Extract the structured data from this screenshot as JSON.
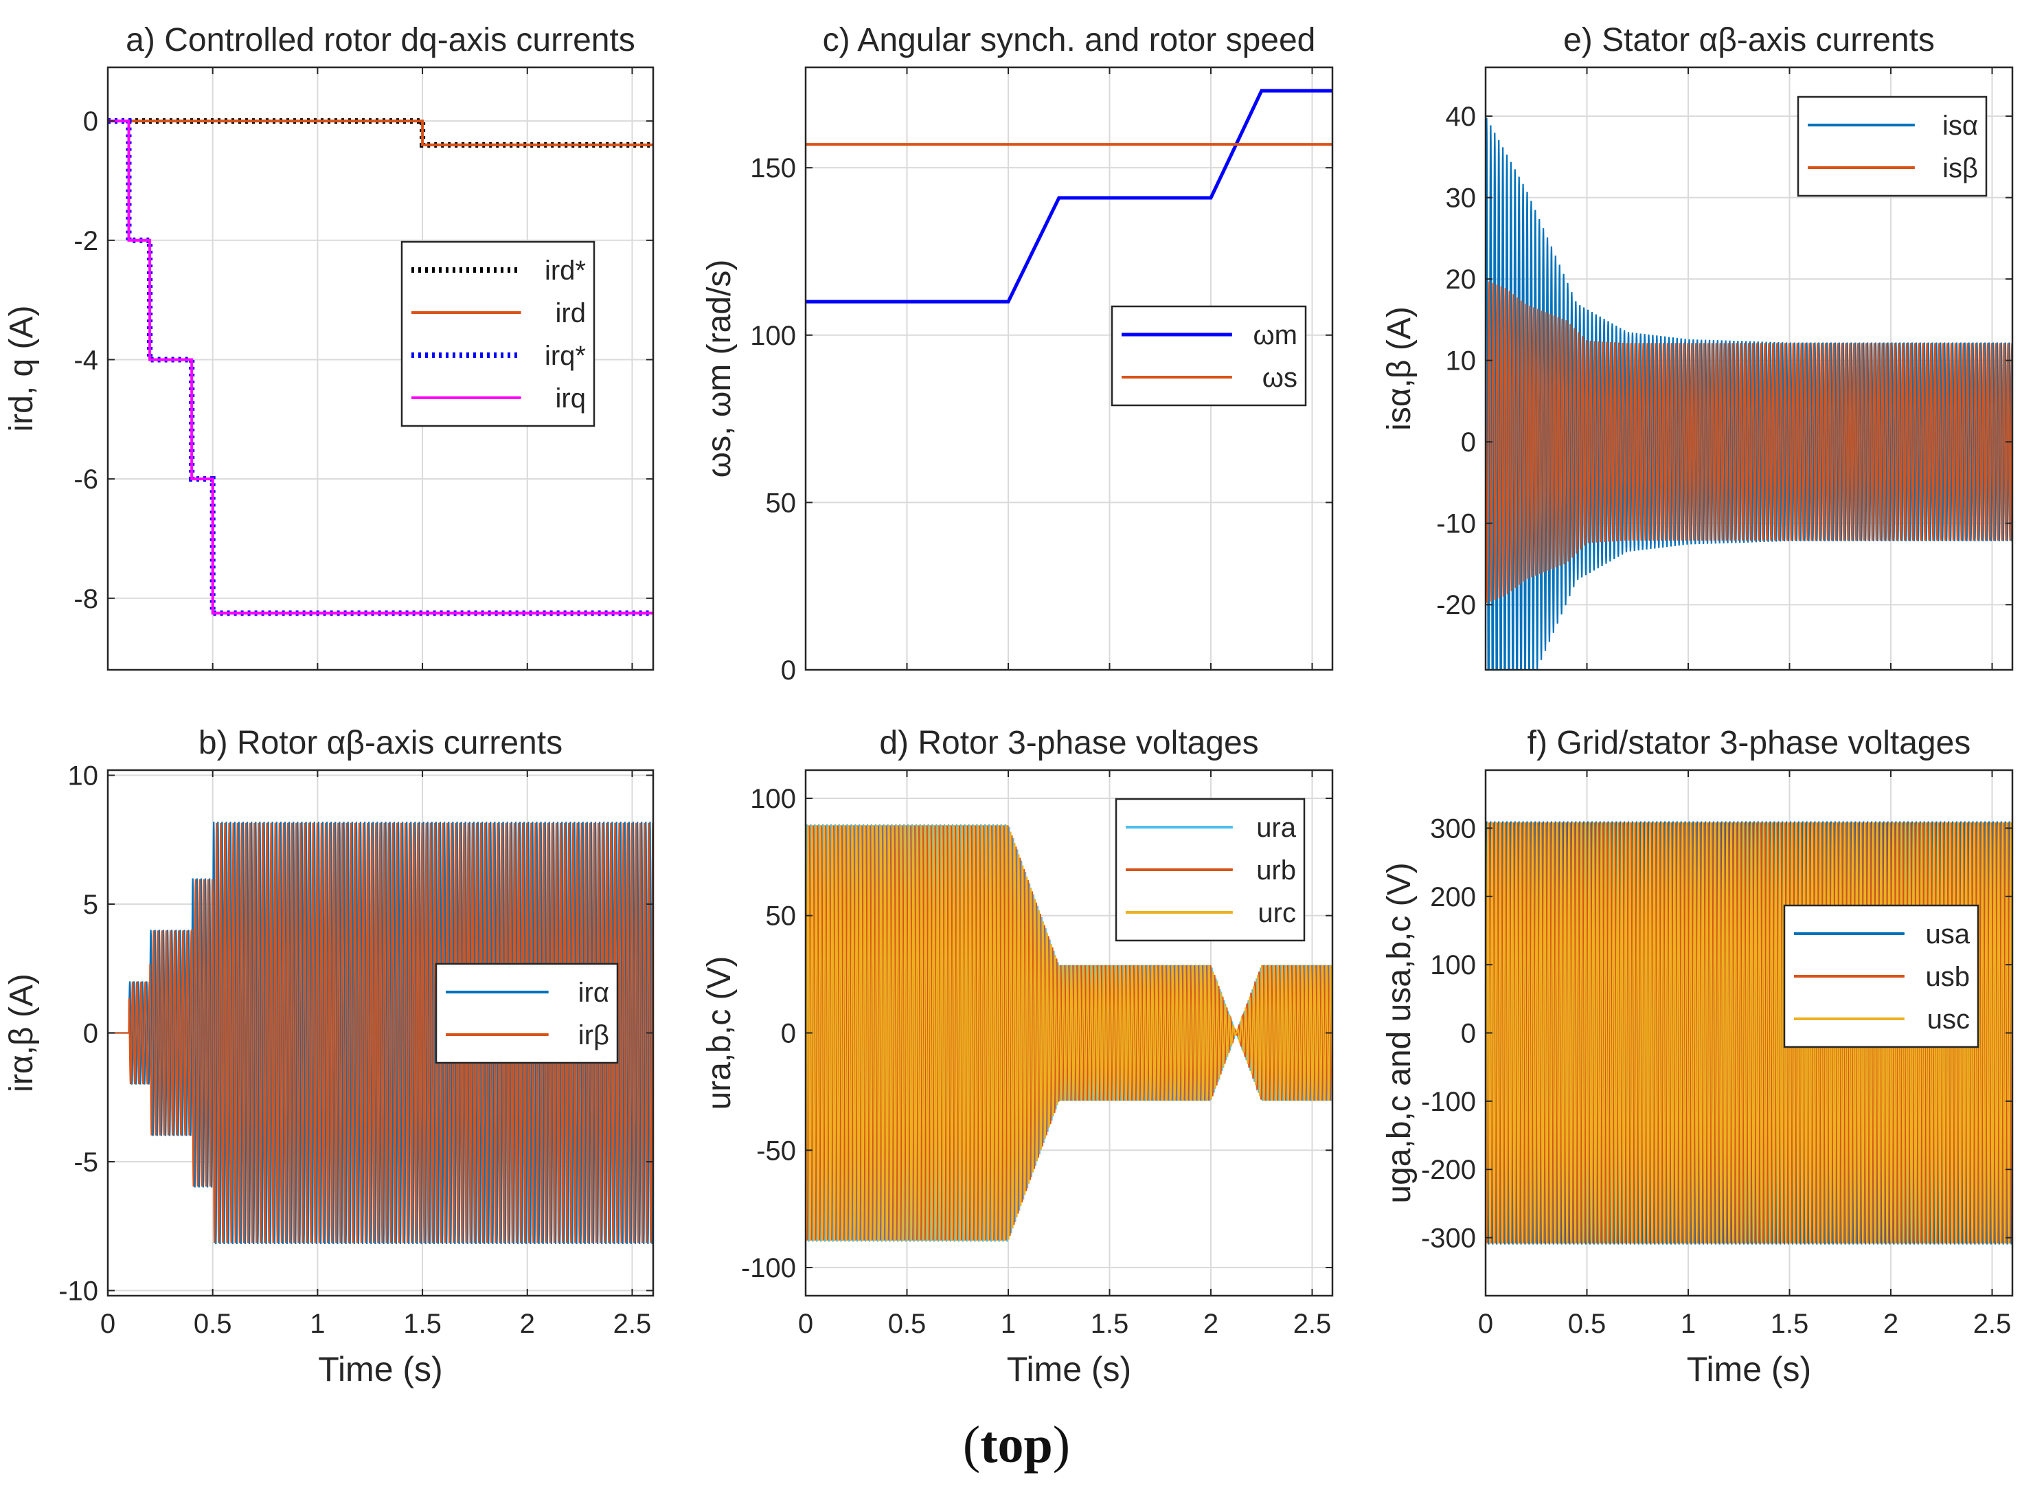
{
  "figure": {
    "caption_open": "(",
    "caption_bold": "top",
    "caption_close": ")"
  },
  "colors": {
    "blue": "#0072BD",
    "orange": "#D95319",
    "yellow": "#EDB120",
    "pure_blue": "#0000FF",
    "magenta": "#FF00FF",
    "cyan": "#4DBEEE",
    "black": "#000000",
    "grid": "#DADADA"
  },
  "chart_data": [
    {
      "id": "a",
      "type": "line",
      "title": "a) Controlled rotor dq-axis currents",
      "xlabel": "",
      "ylabel": "ird, q (A)",
      "xlim": [
        0,
        2.6
      ],
      "ylim": [
        -9.2,
        0.9
      ],
      "xticks": [
        0,
        0.5,
        1,
        1.5,
        2,
        2.5
      ],
      "xtick_labels": [],
      "yticks": [
        0,
        -2,
        -4,
        -6,
        -8
      ],
      "ytick_labels": [
        "0",
        "-2",
        "-4",
        "-6",
        "-8"
      ],
      "grid": true,
      "legend_position": "right",
      "series": [
        {
          "name": "ird*",
          "style": "dotted",
          "color": "#000000",
          "x": [
            0,
            1.5,
            1.5,
            2.6
          ],
          "y": [
            0,
            0,
            -0.4,
            -0.4
          ]
        },
        {
          "name": "ird",
          "style": "solid",
          "color": "#D95319",
          "x": [
            0,
            1.5,
            1.5,
            2.6
          ],
          "y": [
            0,
            0,
            -0.4,
            -0.4
          ]
        },
        {
          "name": "irq*",
          "style": "dotted",
          "color": "#0000FF",
          "x": [
            0,
            0.1,
            0.1,
            0.2,
            0.2,
            0.4,
            0.4,
            0.5,
            0.5,
            2.6
          ],
          "y": [
            0,
            0,
            -2,
            -2,
            -4,
            -4,
            -6,
            -6,
            -8.25,
            -8.25
          ]
        },
        {
          "name": "irq",
          "style": "solid",
          "color": "#FF00FF",
          "x": [
            0,
            0.1,
            0.1,
            0.2,
            0.2,
            0.4,
            0.4,
            0.5,
            0.5,
            2.6
          ],
          "y": [
            0,
            0,
            -2,
            -2,
            -4,
            -4,
            -6,
            -6,
            -8.25,
            -8.25
          ]
        }
      ]
    },
    {
      "id": "b",
      "type": "line",
      "title": "b) Rotor αβ-axis currents",
      "xlabel": "Time (s)",
      "ylabel": "irα,β (A)",
      "xlim": [
        0,
        2.6
      ],
      "ylim": [
        -10.2,
        10.2
      ],
      "xticks": [
        0,
        0.5,
        1,
        1.5,
        2,
        2.5
      ],
      "xtick_labels": [
        "0",
        "0.5",
        "1",
        "1.5",
        "2",
        "2.5"
      ],
      "yticks": [
        10,
        5,
        0,
        -5,
        -10
      ],
      "ytick_labels": [
        "10",
        "5",
        "0",
        "-5",
        "-10"
      ],
      "grid": true,
      "legend_position": "right",
      "series": [
        {
          "name": "irα",
          "color": "#0072BD",
          "kind": "oscillation",
          "envelope": {
            "t": [
              0,
              0.1,
              0.1,
              0.2,
              0.2,
              0.4,
              0.4,
              0.5,
              0.5,
              2.6
            ],
            "a": [
              0,
              0,
              2,
              2,
              4,
              4,
              6,
              6,
              8.2,
              8.2
            ]
          }
        },
        {
          "name": "irβ",
          "color": "#D95319",
          "kind": "oscillation",
          "envelope": {
            "t": [
              0,
              0.1,
              0.1,
              0.2,
              0.2,
              0.4,
              0.4,
              0.5,
              0.5,
              2.6
            ],
            "a": [
              0,
              0,
              2,
              2,
              4,
              4,
              6,
              6,
              8.2,
              8.2
            ]
          }
        }
      ]
    },
    {
      "id": "c",
      "type": "line",
      "title": "c) Angular synch. and rotor speed",
      "xlabel": "",
      "ylabel": "ωs, ωm (rad/s)",
      "xlim": [
        0,
        2.6
      ],
      "ylim": [
        0,
        180
      ],
      "xticks": [
        0,
        0.5,
        1,
        1.5,
        2,
        2.5
      ],
      "xtick_labels": [],
      "yticks": [
        0,
        50,
        100,
        150
      ],
      "ytick_labels": [
        "0",
        "50",
        "100",
        "150"
      ],
      "grid": true,
      "legend_position": "right",
      "series": [
        {
          "name": "ωm",
          "style": "solid",
          "color": "#0000FF",
          "x": [
            0,
            1,
            1.25,
            2,
            2.25,
            2.6
          ],
          "y": [
            110,
            110,
            141,
            141,
            173,
            173
          ]
        },
        {
          "name": "ωs",
          "style": "solid",
          "color": "#D95319",
          "x": [
            0,
            2.6
          ],
          "y": [
            157,
            157
          ]
        }
      ]
    },
    {
      "id": "d",
      "type": "line",
      "title": "d) Rotor 3-phase voltages",
      "xlabel": "Time (s)",
      "ylabel": "ura,b,c (V)",
      "xlim": [
        0,
        2.6
      ],
      "ylim": [
        -112,
        112
      ],
      "xticks": [
        0,
        0.5,
        1,
        1.5,
        2,
        2.5
      ],
      "xtick_labels": [
        "0",
        "0.5",
        "1",
        "1.5",
        "2",
        "2.5"
      ],
      "yticks": [
        100,
        50,
        0,
        -50,
        -100
      ],
      "ytick_labels": [
        "100",
        "50",
        "0",
        "-50",
        "-100"
      ],
      "grid": true,
      "legend_position": "top-right",
      "series": [
        {
          "name": "ura",
          "color": "#4DBEEE",
          "kind": "oscillation",
          "envelope": {
            "t": [
              0,
              1,
              1.25,
              2,
              2.125,
              2.25,
              2.6
            ],
            "a": [
              89,
              89,
              29,
              29,
              0,
              29,
              29
            ]
          }
        },
        {
          "name": "urb",
          "color": "#D95319",
          "kind": "oscillation",
          "envelope": {
            "t": [
              0,
              1,
              1.25,
              2,
              2.125,
              2.25,
              2.6
            ],
            "a": [
              89,
              89,
              29,
              29,
              0,
              29,
              29
            ]
          }
        },
        {
          "name": "urc",
          "color": "#EDB120",
          "kind": "oscillation",
          "envelope": {
            "t": [
              0,
              1,
              1.25,
              2,
              2.125,
              2.25,
              2.6
            ],
            "a": [
              89,
              89,
              29,
              29,
              0,
              29,
              29
            ]
          }
        }
      ]
    },
    {
      "id": "e",
      "type": "line",
      "title": "e)  Stator αβ-axis currents",
      "xlabel": "",
      "ylabel": "isα,β (A)",
      "xlim": [
        0,
        2.6
      ],
      "ylim": [
        -28,
        46
      ],
      "xticks": [
        0,
        0.5,
        1,
        1.5,
        2,
        2.5
      ],
      "xtick_labels": [],
      "yticks": [
        40,
        30,
        20,
        10,
        0,
        -10,
        -20
      ],
      "ytick_labels": [
        "40",
        "30",
        "20",
        "10",
        "0",
        "-10",
        "-20"
      ],
      "grid": true,
      "legend_position": "top-right",
      "series": [
        {
          "name": "isα",
          "color": "#0072BD",
          "kind": "oscillation",
          "envelope": {
            "t": [
              0,
              0.2,
              0.45,
              0.7,
              1.0,
              1.5,
              2.6
            ],
            "a": [
              40,
              31,
              17,
              13.5,
              12.6,
              12.2,
              12.2
            ]
          }
        },
        {
          "name": "isβ",
          "color": "#D95319",
          "kind": "oscillation",
          "envelope": {
            "t": [
              0,
              0.1,
              0.2,
              0.4,
              0.5,
              0.7,
              2.6
            ],
            "a": [
              20,
              19,
              17,
              15,
              12.5,
              12.2,
              12.2
            ]
          }
        }
      ]
    },
    {
      "id": "f",
      "type": "line",
      "title": "f) Grid/stator 3-phase voltages",
      "xlabel": "Time (s)",
      "ylabel": "uga,b,c and usa,b,c (V)",
      "xlim": [
        0,
        2.6
      ],
      "ylim": [
        -385,
        385
      ],
      "xticks": [
        0,
        0.5,
        1,
        1.5,
        2,
        2.5
      ],
      "xtick_labels": [
        "0",
        "0.5",
        "1",
        "1.5",
        "2",
        "2.5"
      ],
      "yticks": [
        300,
        200,
        100,
        0,
        -100,
        -200,
        -300
      ],
      "ytick_labels": [
        "300",
        "200",
        "100",
        "0",
        "-100",
        "-200",
        "-300"
      ],
      "grid": true,
      "legend_position": "right",
      "series": [
        {
          "name": "usa",
          "color": "#0072BD",
          "kind": "oscillation",
          "envelope": {
            "t": [
              0,
              2.6
            ],
            "a": [
              310,
              310
            ]
          }
        },
        {
          "name": "usb",
          "color": "#D95319",
          "kind": "oscillation",
          "envelope": {
            "t": [
              0,
              2.6
            ],
            "a": [
              310,
              310
            ]
          }
        },
        {
          "name": "usc",
          "color": "#EDB120",
          "kind": "oscillation",
          "envelope": {
            "t": [
              0,
              2.6
            ],
            "a": [
              310,
              310
            ]
          }
        }
      ]
    }
  ]
}
